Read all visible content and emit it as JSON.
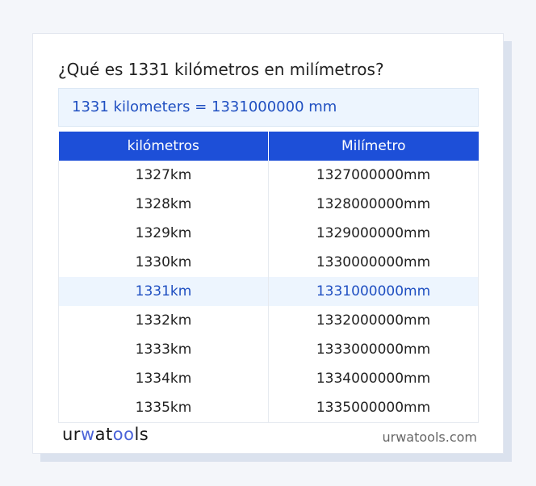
{
  "title": "¿Qué es 1331 kilómetros en milímetros?",
  "result": "1331 kilometers = 1331000000 mm",
  "table": {
    "headers": [
      "kilómetros",
      "Milímetro"
    ],
    "rows": [
      [
        "1327km",
        "1327000000mm"
      ],
      [
        "1328km",
        "1328000000mm"
      ],
      [
        "1329km",
        "1329000000mm"
      ],
      [
        "1330km",
        "1330000000mm"
      ],
      [
        "1331km",
        "1331000000mm"
      ],
      [
        "1332km",
        "1332000000mm"
      ],
      [
        "1333km",
        "1333000000mm"
      ],
      [
        "1334km",
        "1334000000mm"
      ],
      [
        "1335km",
        "1335000000mm"
      ]
    ],
    "highlighted_row": 4
  },
  "footer": {
    "logo": "urwatools",
    "site": "urwatools.com"
  },
  "colors": {
    "accent": "#1d4fd8",
    "highlight_bg": "#edf5fe",
    "highlight_text": "#1f4fc1"
  }
}
